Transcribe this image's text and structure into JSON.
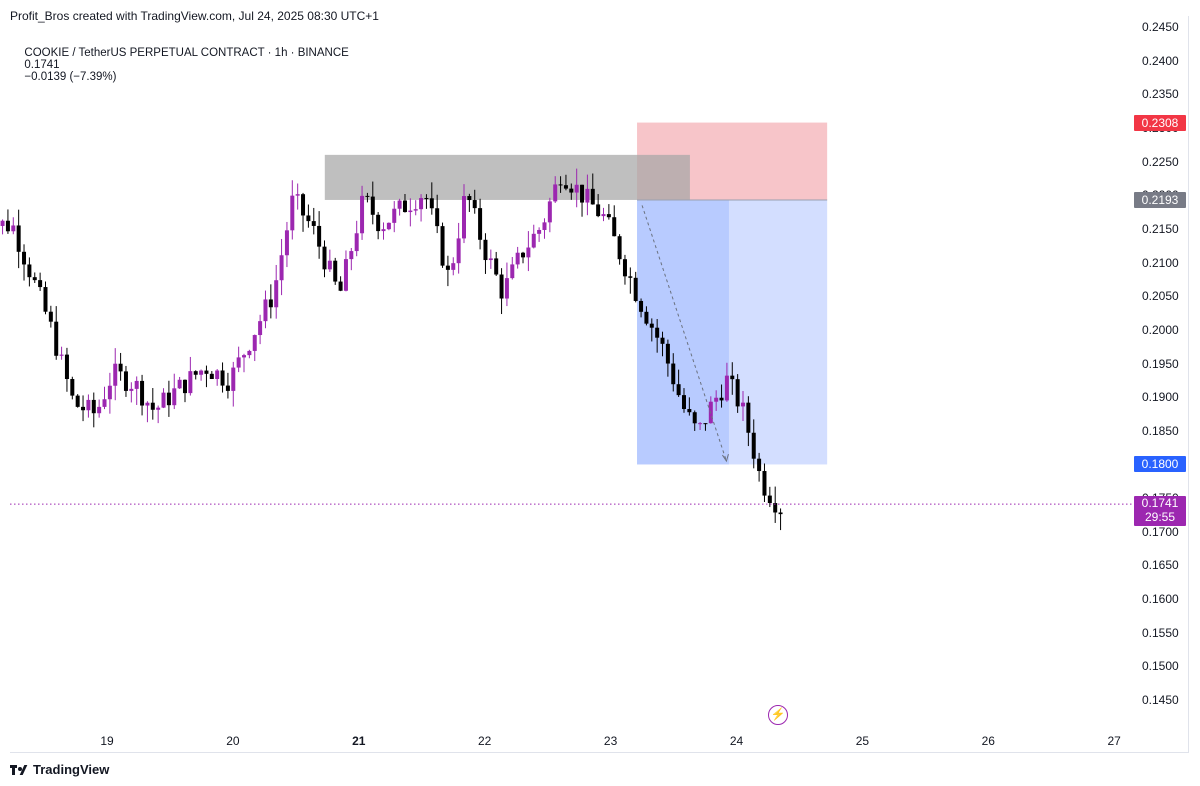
{
  "header": {
    "credit": "Profit_Bros created with TradingView.com, Jul 24, 2025 08:30 UTC+1",
    "symbol": "COOKIE / TetherUS PERPETUAL CONTRACT · 1h · BINANCE",
    "last": "0.1741",
    "change": "−0.0139 (−7.39%)"
  },
  "price_axis": {
    "labels": [
      "0.2450",
      "0.2400",
      "0.2350",
      "0.2300",
      "0.2250",
      "0.2200",
      "0.2150",
      "0.2100",
      "0.2050",
      "0.2000",
      "0.1950",
      "0.1900",
      "0.1850",
      "0.1800",
      "0.1750",
      "0.1700",
      "0.1650",
      "0.1600",
      "0.1550",
      "0.1500",
      "0.1450"
    ],
    "tags": {
      "stop": "0.2308",
      "entry": "0.2193",
      "target": "0.1800",
      "last_price": "0.1741",
      "countdown": "29:55"
    }
  },
  "time_axis": {
    "labels": [
      "19",
      "20",
      "21",
      "22",
      "23",
      "24",
      "25",
      "26",
      "27"
    ],
    "bold": "21"
  },
  "footer": {
    "brand": "TradingView"
  },
  "colors": {
    "bull": "#9c27b0",
    "bear": "#000000",
    "stop_zone": "#f7c5c9",
    "target_zone": "#b3c8ff",
    "target_zone_light": "#d3deff",
    "supply_zone": "#a6a6a6",
    "stop_tag": "#f23645",
    "entry_tag": "#787b86",
    "target_tag": "#2962ff",
    "last_tag": "#9c27b0"
  },
  "chart_data": {
    "type": "candlestick",
    "timeframe": "1h",
    "x_range": [
      "Jul 18, 2025",
      "Jul 27, 2025"
    ],
    "y_range": [
      0.143,
      0.246
    ],
    "long_short_position": {
      "direction": "short",
      "entry": 0.2193,
      "stop": 0.2308,
      "target": 0.18
    },
    "supply_zone": {
      "top": 0.226,
      "bottom": 0.2193
    },
    "last_price": 0.1741,
    "close_path": [
      [
        0.216,
        0
      ],
      [
        0.2155,
        1.3
      ],
      [
        0.201,
        2.8
      ],
      [
        0.189,
        3.8
      ],
      [
        0.1875,
        4.7
      ],
      [
        0.1935,
        5.4
      ],
      [
        0.192,
        6.3
      ],
      [
        0.188,
        7.1
      ],
      [
        0.191,
        8.0
      ],
      [
        0.1945,
        9.2
      ],
      [
        0.1925,
        10.2
      ],
      [
        0.2055,
        12.0
      ],
      [
        0.2195,
        12.8
      ],
      [
        0.215,
        13.6
      ],
      [
        0.205,
        14.7
      ],
      [
        0.2195,
        15.7
      ],
      [
        0.2155,
        16.4
      ],
      [
        0.2185,
        17.4
      ],
      [
        0.2205,
        18.2
      ],
      [
        0.2075,
        19.2
      ],
      [
        0.2205,
        19.9
      ],
      [
        0.2125,
        20.6
      ],
      [
        0.2055,
        21.4
      ],
      [
        0.2115,
        22.2
      ],
      [
        0.2155,
        23.0
      ],
      [
        0.2235,
        23.8
      ],
      [
        0.2195,
        24.8
      ],
      [
        0.2165,
        25.6
      ],
      [
        0.2045,
        27.0
      ],
      [
        0.197,
        28.0
      ],
      [
        0.1885,
        28.8
      ],
      [
        0.1845,
        29.4
      ],
      [
        0.189,
        30.0
      ],
      [
        0.1925,
        30.6
      ],
      [
        0.1885,
        31.2
      ],
      [
        0.1835,
        31.6
      ],
      [
        0.1775,
        32.0
      ],
      [
        0.1735,
        32.8
      ]
    ]
  }
}
